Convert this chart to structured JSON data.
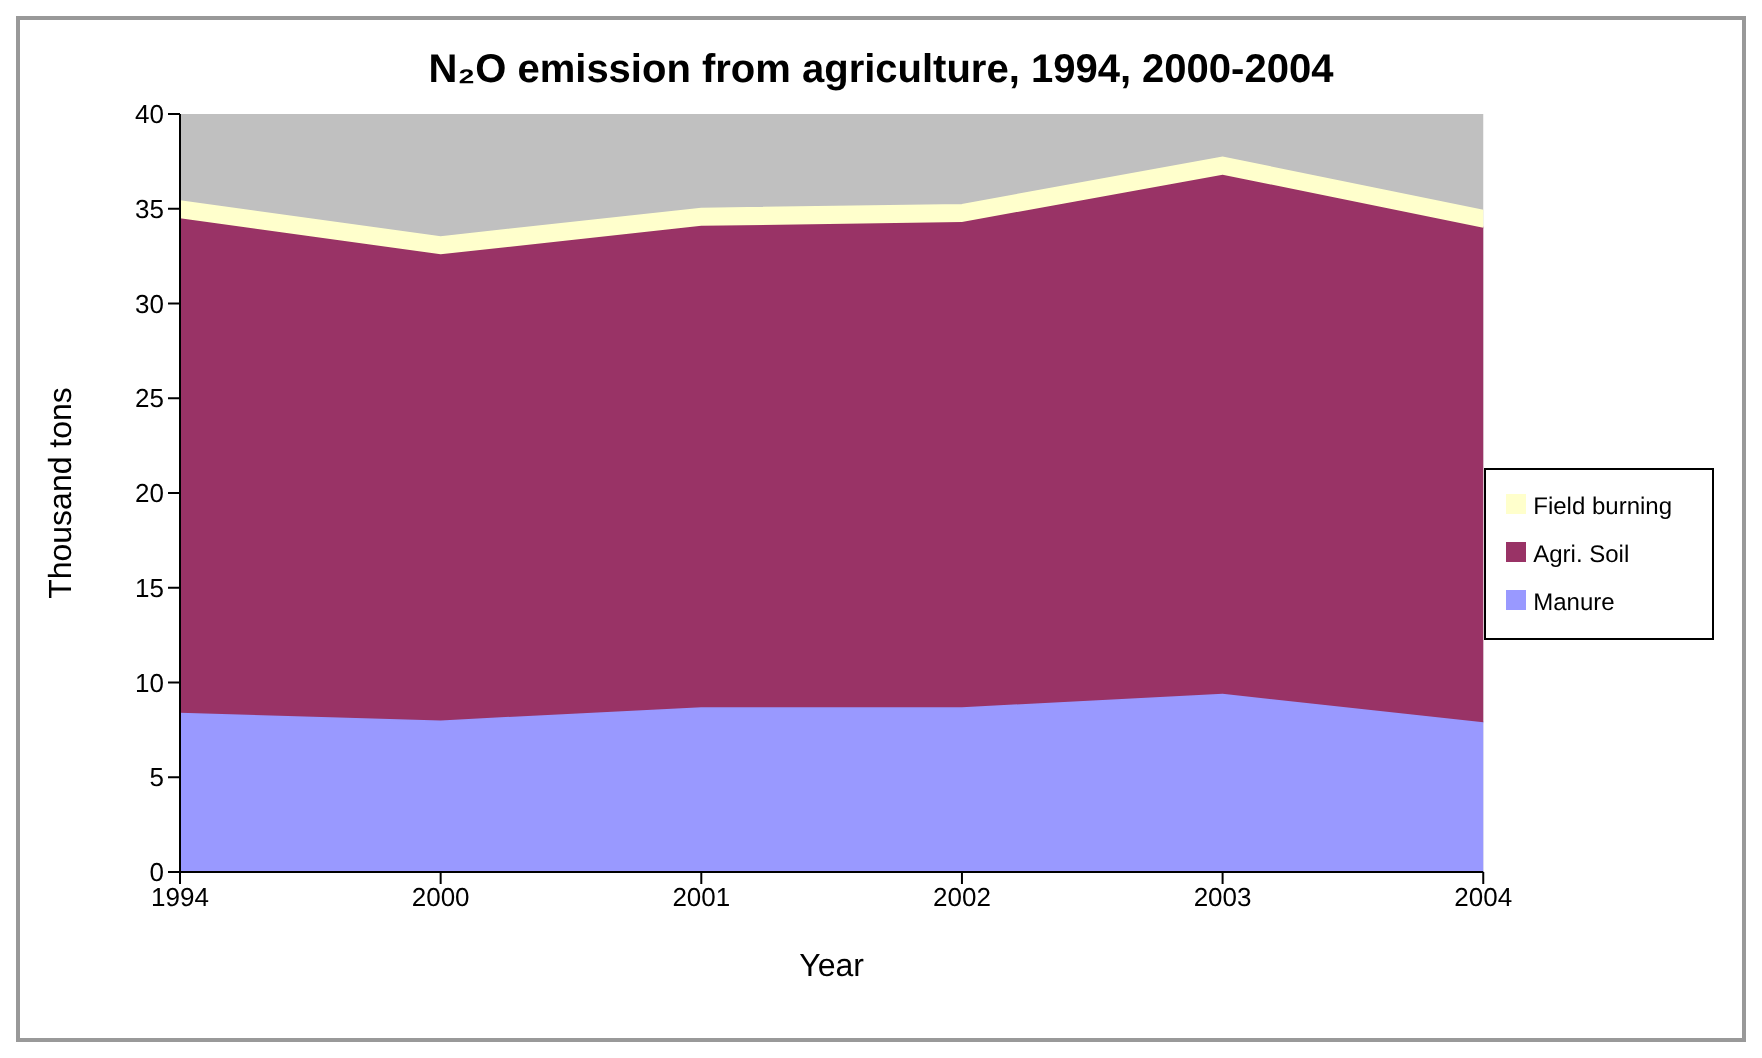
{
  "chart_data": {
    "type": "area",
    "title": "N₂O emission from agriculture, 1994, 2000-2004",
    "xlabel": "Year",
    "ylabel": "Thousand tons",
    "categories": [
      "1994",
      "2000",
      "2001",
      "2002",
      "2003",
      "2004"
    ],
    "stacked": true,
    "series": [
      {
        "name": "Manure",
        "color": "#9999ff",
        "values": [
          8.4,
          8.0,
          8.7,
          8.7,
          9.4,
          7.9
        ]
      },
      {
        "name": "Agri. Soil",
        "color": "#993366",
        "values": [
          26.1,
          24.6,
          25.4,
          25.6,
          27.4,
          26.1
        ]
      },
      {
        "name": "Field burning",
        "color": "#ffffcc",
        "values": [
          0.9,
          0.9,
          0.9,
          0.9,
          0.9,
          0.9
        ]
      }
    ],
    "ylim": [
      0,
      40
    ],
    "yticks": [
      0,
      5,
      10,
      15,
      20,
      25,
      30,
      35,
      40
    ],
    "grid": false,
    "legend": "right"
  }
}
